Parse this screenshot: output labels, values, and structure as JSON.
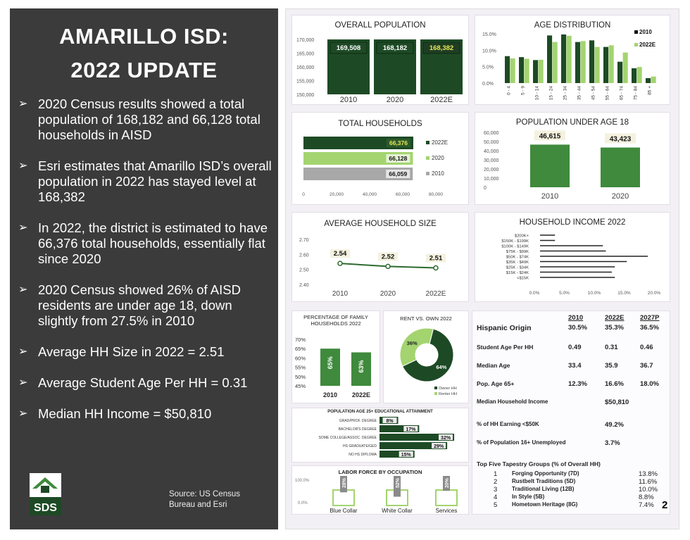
{
  "left": {
    "title_line1": "AMARILLO ISD:",
    "title_line2": "2022 UPDATE",
    "bullets": [
      "2020 Census results showed a total population of 168,182 and 66,128 total households in AISD",
      "Esri estimates that Amarillo ISD’s overall population in 2022 has stayed level at 168,382",
      "In 2022, the district is estimated to have 66,376 total households, essentially flat since 2020",
      "2020 Census showed 26% of AISD residents are under age 18, down slightly from 27.5% in 2010",
      "Average HH Size in 2022 = 2.51",
      "Average Student Age Per HH = 0.31",
      "Median HH Income = $50,810"
    ],
    "bullet_glyph": "➢",
    "logo_text": "SDS",
    "source": "Source: US Census Bureau and Esri"
  },
  "colors": {
    "dark_green": "#1d4a25",
    "mid_green": "#3f8a3c",
    "light_green": "#a3d46f",
    "gray": "#a8a8a8",
    "panel_bg": "#3b3b3c"
  },
  "chart_data": [
    {
      "type": "bar",
      "title": "OVERALL POPULATION",
      "categories": [
        "2010",
        "2020",
        "2022E"
      ],
      "values": [
        169508,
        168182,
        168382
      ],
      "data_labels": [
        "169,508",
        "168,182",
        "168,382"
      ],
      "ylim": [
        150000,
        170000
      ],
      "y_ticks": [
        "170,000",
        "165,000",
        "160,000",
        "155,000",
        "150,000"
      ]
    },
    {
      "type": "bar",
      "title": "AGE DISTRIBUTION",
      "categories": [
        "0 - 4",
        "5 - 9",
        "10 - 14",
        "15 - 24",
        "25 - 34",
        "35 - 44",
        "45 - 54",
        "55 - 64",
        "65 - 74",
        "75 - 84",
        "85 +"
      ],
      "series": [
        {
          "name": "2010",
          "values": [
            8.2,
            7.9,
            7.0,
            14.5,
            14.8,
            12.5,
            13.0,
            11.0,
            6.5,
            4.5,
            1.5
          ]
        },
        {
          "name": "2022E",
          "values": [
            7.5,
            7.4,
            7.1,
            12.5,
            14.4,
            12.8,
            11.0,
            11.5,
            9.3,
            4.9,
            2.0
          ]
        }
      ],
      "ylim": [
        0,
        15
      ],
      "y_ticks": [
        "15.0%",
        "10.0%",
        "5.0%",
        "0.0%"
      ],
      "legend": "top-right"
    },
    {
      "type": "bar",
      "title": "TOTAL HOUSEHOLDS",
      "categories": [
        "2022E",
        "2020",
        "2010"
      ],
      "values": [
        66376,
        66128,
        66059
      ],
      "data_labels": [
        "66,376",
        "66,128",
        "66,059"
      ],
      "xlim": [
        0,
        80000
      ],
      "x_ticks": [
        "0",
        "20,000",
        "40,000",
        "60,000",
        "80,000"
      ],
      "legend": "right"
    },
    {
      "type": "bar",
      "title": "POPULATION UNDER AGE 18",
      "categories": [
        "2010",
        "2020"
      ],
      "values": [
        46615,
        43423
      ],
      "data_labels": [
        "46,615",
        "43,423"
      ],
      "ylim": [
        0,
        60000
      ],
      "y_ticks": [
        "60,000",
        "50,000",
        "40,000",
        "30,000",
        "20,000",
        "10,000",
        "0"
      ]
    },
    {
      "type": "line",
      "title": "AVERAGE HOUSEHOLD SIZE",
      "categories": [
        "2010",
        "2020",
        "2022E"
      ],
      "values": [
        2.54,
        2.52,
        2.51
      ],
      "data_labels": [
        "2.54",
        "2.52",
        "2.51"
      ],
      "ylim": [
        2.4,
        2.7
      ],
      "y_ticks": [
        "2.70",
        "2.60",
        "2.50",
        "2.40"
      ]
    },
    {
      "type": "bar",
      "title": "HOUSEHOLD INCOME 2022",
      "categories": [
        "$200K+",
        "$150K - $199K",
        "$100K - $149K",
        "$75K - $99K",
        "$50K - $74K",
        "$35K - $49K",
        "$25K - $34K",
        "$15K - $24K",
        "<$15K"
      ],
      "values": [
        2.5,
        2.5,
        10.5,
        11.0,
        18.0,
        14.5,
        12.5,
        12.0,
        12.5
      ],
      "xlim": [
        0,
        20
      ],
      "x_ticks": [
        "0.0%",
        "5.0%",
        "10.0%",
        "15.0%",
        "20.0%"
      ]
    },
    {
      "type": "bar",
      "title": "PERCENTAGE OF FAMILY HOUSEHOLDS 2022",
      "categories": [
        "2010",
        "2022E"
      ],
      "values": [
        65,
        63
      ],
      "data_labels": [
        "65%",
        "63%"
      ],
      "ylim": [
        45,
        70
      ],
      "y_ticks": [
        "70%",
        "65%",
        "60%",
        "55%",
        "50%",
        "45%"
      ]
    },
    {
      "type": "pie",
      "title": "RENT VS. OWN 2022",
      "series": [
        {
          "name": "Owner HH",
          "values": [
            64
          ]
        },
        {
          "name": "Renter HH",
          "values": [
            36
          ]
        }
      ],
      "data_labels": [
        "64%",
        "36%"
      ],
      "legend_entries": [
        "Owner HH",
        "Renter HH"
      ]
    },
    {
      "type": "bar",
      "title": "POPULATION AGE 25+ EDUCATIONAL ATTAINMENT",
      "categories": [
        "GRAD/PROF. DEGREE",
        "BACHELOR'S DEGREE",
        "SOME COLLEGE/ASSOC. DEGREE",
        "HS GRADUATE/GED",
        "NO HS DIPLOMA"
      ],
      "values": [
        8,
        17,
        32,
        29,
        15
      ],
      "data_labels": [
        "8%",
        "17%",
        "32%",
        "29%",
        "15%"
      ],
      "xlim": [
        0,
        35
      ]
    },
    {
      "type": "bar",
      "title": "LABOR FORCE BY OCCUPATION",
      "categories": [
        "Blue Collar",
        "White Collar",
        "Services"
      ],
      "values": [
        28,
        52,
        20
      ],
      "data_labels": [
        "28%",
        "52%",
        "20%"
      ],
      "ylim": [
        0,
        100
      ],
      "y_ticks": [
        "100.0%",
        "0.0%"
      ]
    }
  ],
  "stats_table": {
    "headers": [
      "2010",
      "2022E",
      "2027P"
    ],
    "rows": [
      {
        "label": "Hispanic Origin",
        "values": [
          "30.5%",
          "35.3%",
          "36.5%"
        ]
      },
      {
        "label": "Student Age Per HH",
        "values": [
          "0.49",
          "0.31",
          "0.46"
        ]
      },
      {
        "label": "Median Age",
        "values": [
          "33.4",
          "35.9",
          "36.7"
        ]
      },
      {
        "label": "Pop. Age 65+",
        "values": [
          "12.3%",
          "16.6%",
          "18.0%"
        ]
      },
      {
        "label": "Median Household Income",
        "values": [
          "",
          "$50,810",
          ""
        ]
      },
      {
        "label": "% of HH Earning <$50K",
        "values": [
          "",
          "49.2%",
          ""
        ]
      },
      {
        "label": "% of Population 16+ Unemployed",
        "values": [
          "",
          "3.7%",
          ""
        ]
      }
    ],
    "tapestry_title": "Top Five Tapestry Groups (% of Overall HH)",
    "tapestry": [
      {
        "rank": "1",
        "name": "Forging Opportunity (7D)",
        "pct": "13.8%"
      },
      {
        "rank": "2",
        "name": "Rustbelt Traditions (5D)",
        "pct": "11.6%"
      },
      {
        "rank": "3",
        "name": "Traditional Living (12B)",
        "pct": "10.0%"
      },
      {
        "rank": "4",
        "name": "In Style (5B)",
        "pct": "8.8%"
      },
      {
        "rank": "5",
        "name": "Hometown Heritage (8G)",
        "pct": "7.4%"
      }
    ]
  },
  "page_number": "2"
}
